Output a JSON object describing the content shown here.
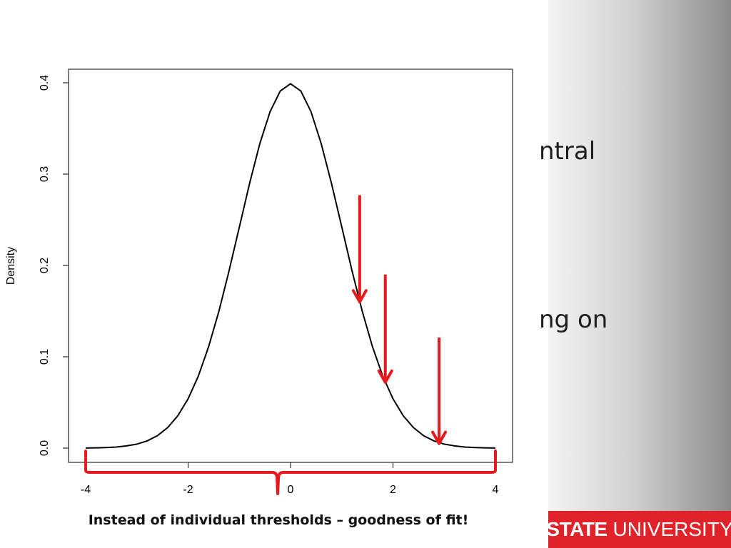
{
  "background_text": [
    "ntral",
    "ng on"
  ],
  "logo": {
    "bold": "STATE",
    "regular": "UNIVERSITY",
    "color": "#e0232a"
  },
  "caption": "Instead of individual thresholds – goodness of fit!",
  "colors": {
    "curve": "#000000",
    "annotation": "#e8191c"
  },
  "chart_data": {
    "type": "line",
    "title": "",
    "xlabel": "",
    "ylabel": "Density",
    "xlim": [
      -4,
      4
    ],
    "ylim": [
      0,
      0.4
    ],
    "x_ticks": [
      "-4",
      "-2",
      "0",
      "2",
      "4"
    ],
    "y_ticks": [
      "0.0",
      "0.1",
      "0.2",
      "0.3",
      "0.4"
    ],
    "grid": false,
    "series": [
      {
        "name": "",
        "x": [
          -4.0,
          -3.8,
          -3.6,
          -3.4,
          -3.2,
          -3.0,
          -2.8,
          -2.6,
          -2.4,
          -2.2,
          -2.0,
          -1.8,
          -1.6,
          -1.4,
          -1.2,
          -1.0,
          -0.8,
          -0.6,
          -0.4,
          -0.2,
          0.0,
          0.2,
          0.4,
          0.6,
          0.8,
          1.0,
          1.2,
          1.4,
          1.6,
          1.8,
          2.0,
          2.2,
          2.4,
          2.6,
          2.8,
          3.0,
          3.2,
          3.4,
          3.6,
          3.8,
          4.0
        ],
        "y": [
          0.0001,
          0.0003,
          0.0006,
          0.0012,
          0.0024,
          0.0044,
          0.0079,
          0.0136,
          0.0224,
          0.0355,
          0.054,
          0.079,
          0.1109,
          0.1497,
          0.1942,
          0.242,
          0.2897,
          0.3332,
          0.3683,
          0.391,
          0.3989,
          0.391,
          0.3683,
          0.3332,
          0.2897,
          0.242,
          0.1942,
          0.1497,
          0.1109,
          0.079,
          0.054,
          0.0355,
          0.0224,
          0.0136,
          0.0079,
          0.0044,
          0.0024,
          0.0012,
          0.0006,
          0.0003,
          0.0001
        ]
      }
    ],
    "annotations": {
      "arrows": [
        {
          "x": 1.35,
          "y_start": 0.277,
          "y_end": 0.16
        },
        {
          "x": 1.85,
          "y_start": 0.19,
          "y_end": 0.072
        },
        {
          "x": 2.9,
          "y_start": 0.121,
          "y_end": 0.005
        }
      ],
      "brace": {
        "x_start": -4,
        "x_end": 4,
        "x_point": -0.25
      }
    }
  }
}
